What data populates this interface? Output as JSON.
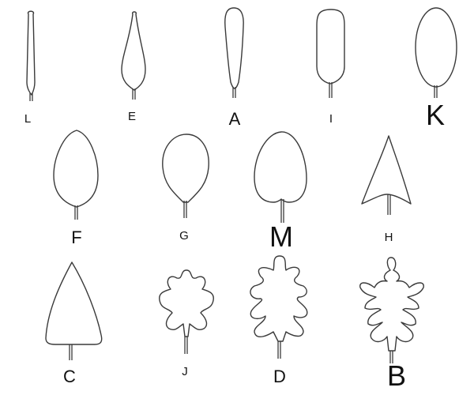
{
  "leaves": [
    {
      "id": "L",
      "shape": "linear"
    },
    {
      "id": "E",
      "shape": "cuneate"
    },
    {
      "id": "A",
      "shape": "oblanceolate"
    },
    {
      "id": "I",
      "shape": "oblong"
    },
    {
      "id": "K",
      "shape": "elliptic"
    },
    {
      "id": "F",
      "shape": "ovate"
    },
    {
      "id": "G",
      "shape": "obovate"
    },
    {
      "id": "M",
      "shape": "cordate"
    },
    {
      "id": "H",
      "shape": "sagittate"
    },
    {
      "id": "C",
      "shape": "deltoid"
    },
    {
      "id": "J",
      "shape": "lobed"
    },
    {
      "id": "D",
      "shape": "pinnatifid"
    },
    {
      "id": "B",
      "shape": "bipinnatifid"
    }
  ],
  "labels": {
    "L": "L",
    "E": "E",
    "A": "A",
    "I": "I",
    "K": "K",
    "F": "F",
    "G": "G",
    "M": "M",
    "H": "H",
    "C": "C",
    "J": "J",
    "D": "D",
    "B": "B"
  }
}
